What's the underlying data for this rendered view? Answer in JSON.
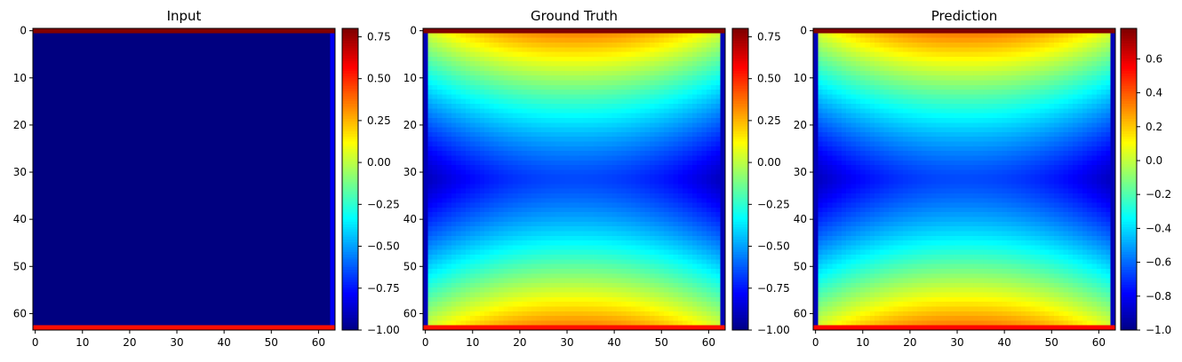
{
  "figure": {
    "background": "#ffffff",
    "colormap": "jet"
  },
  "chart_data": [
    {
      "type": "heatmap",
      "title": "Input",
      "grid_size": [
        64,
        64
      ],
      "field": "input",
      "xticks": [
        0,
        10,
        20,
        30,
        40,
        50,
        60
      ],
      "yticks": [
        0,
        10,
        20,
        30,
        40,
        50,
        60
      ],
      "colorbar": {
        "min": -1.0,
        "max": 0.8,
        "ticks": [
          0.75,
          0.5,
          0.25,
          0.0,
          -0.25,
          -0.5,
          -0.75,
          -1.0
        ],
        "tick_labels": [
          "0.75",
          "0.50",
          "0.25",
          "0.00",
          "−0.25",
          "−0.50",
          "−0.75",
          "−1.00"
        ]
      },
      "values_description": "interior -1.00; top row 0.80; bottom row 0.55; right column -0.80"
    },
    {
      "type": "heatmap",
      "title": "Ground Truth",
      "grid_size": [
        64,
        64
      ],
      "field": "solution",
      "xticks": [
        0,
        10,
        20,
        30,
        40,
        50,
        60
      ],
      "yticks": [
        0,
        10,
        20,
        30,
        40,
        50,
        60
      ],
      "colorbar": {
        "min": -1.0,
        "max": 0.8,
        "ticks": [
          0.75,
          0.5,
          0.25,
          0.0,
          -0.25,
          -0.5,
          -0.75,
          -1.0
        ],
        "tick_labels": [
          "0.75",
          "0.50",
          "0.25",
          "0.00",
          "−0.25",
          "−0.50",
          "−0.75",
          "−1.00"
        ]
      }
    },
    {
      "type": "heatmap",
      "title": "Prediction",
      "grid_size": [
        64,
        64
      ],
      "field": "solution",
      "xticks": [
        0,
        10,
        20,
        30,
        40,
        50,
        60
      ],
      "yticks": [
        0,
        10,
        20,
        30,
        40,
        50,
        60
      ],
      "colorbar": {
        "min": -1.0,
        "max": 0.78,
        "ticks": [
          0.6,
          0.4,
          0.2,
          0.0,
          -0.2,
          -0.4,
          -0.6,
          -0.8,
          -1.0
        ],
        "tick_labels": [
          "0.6",
          "0.4",
          "0.2",
          "0.0",
          "−0.2",
          "−0.4",
          "−0.6",
          "−0.8",
          "−1.0"
        ]
      }
    }
  ]
}
